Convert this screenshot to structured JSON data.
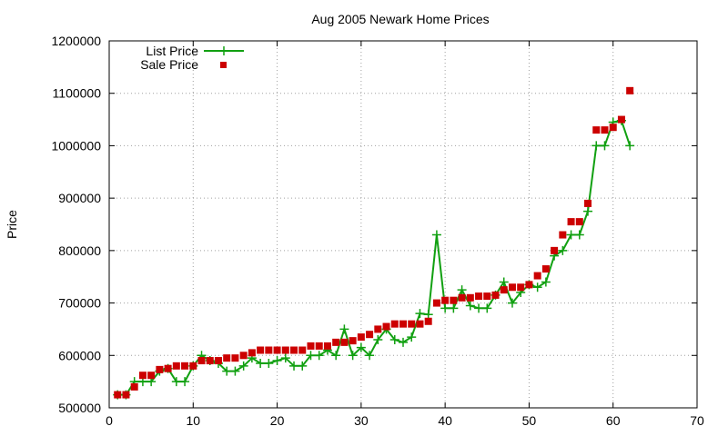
{
  "chart_data": {
    "type": "line",
    "title": "Aug 2005 Newark Home Prices",
    "xlabel": "",
    "ylabel": "Price",
    "xlim": [
      0,
      70
    ],
    "ylim": [
      500000,
      1200000
    ],
    "x_ticks": [
      0,
      10,
      20,
      30,
      40,
      50,
      60,
      70
    ],
    "y_ticks": [
      500000,
      600000,
      700000,
      800000,
      900000,
      1000000,
      1100000,
      1200000
    ],
    "grid": true,
    "legend_position": "top-left",
    "series": [
      {
        "name": "List Price",
        "style": "line+cross",
        "color": "#11a011",
        "points": [
          [
            1,
            525000
          ],
          [
            2,
            525000
          ],
          [
            3,
            550000
          ],
          [
            4,
            550000
          ],
          [
            5,
            550000
          ],
          [
            6,
            570000
          ],
          [
            7,
            575000
          ],
          [
            8,
            550000
          ],
          [
            9,
            550000
          ],
          [
            10,
            580000
          ],
          [
            11,
            600000
          ],
          [
            12,
            590000
          ],
          [
            13,
            585000
          ],
          [
            14,
            570000
          ],
          [
            15,
            570000
          ],
          [
            16,
            580000
          ],
          [
            17,
            595000
          ],
          [
            18,
            585000
          ],
          [
            19,
            585000
          ],
          [
            20,
            590000
          ],
          [
            21,
            595000
          ],
          [
            22,
            580000
          ],
          [
            23,
            580000
          ],
          [
            24,
            600000
          ],
          [
            25,
            600000
          ],
          [
            26,
            610000
          ],
          [
            27,
            600000
          ],
          [
            28,
            650000
          ],
          [
            29,
            600000
          ],
          [
            30,
            615000
          ],
          [
            31,
            600000
          ],
          [
            32,
            630000
          ],
          [
            33,
            650000
          ],
          [
            34,
            630000
          ],
          [
            35,
            625000
          ],
          [
            36,
            635000
          ],
          [
            37,
            680000
          ],
          [
            38,
            678000
          ],
          [
            39,
            830000
          ],
          [
            40,
            690000
          ],
          [
            41,
            690000
          ],
          [
            42,
            725000
          ],
          [
            43,
            695000
          ],
          [
            44,
            690000
          ],
          [
            45,
            690000
          ],
          [
            46,
            715000
          ],
          [
            47,
            740000
          ],
          [
            48,
            700000
          ],
          [
            49,
            720000
          ],
          [
            50,
            735000
          ],
          [
            51,
            730000
          ],
          [
            52,
            740000
          ],
          [
            53,
            790000
          ],
          [
            54,
            800000
          ],
          [
            55,
            830000
          ],
          [
            56,
            830000
          ],
          [
            57,
            875000
          ],
          [
            58,
            1000000
          ],
          [
            59,
            1000000
          ],
          [
            60,
            1045000
          ],
          [
            61,
            1048000
          ],
          [
            62,
            1000000
          ]
        ]
      },
      {
        "name": "Sale Price",
        "style": "square-marker",
        "color": "#cc0000",
        "points": [
          [
            1,
            525000
          ],
          [
            2,
            525000
          ],
          [
            3,
            540000
          ],
          [
            4,
            562000
          ],
          [
            5,
            562000
          ],
          [
            6,
            573000
          ],
          [
            7,
            575000
          ],
          [
            8,
            580000
          ],
          [
            9,
            580000
          ],
          [
            10,
            580000
          ],
          [
            11,
            590000
          ],
          [
            12,
            590000
          ],
          [
            13,
            590000
          ],
          [
            14,
            595000
          ],
          [
            15,
            595000
          ],
          [
            16,
            600000
          ],
          [
            17,
            605000
          ],
          [
            18,
            610000
          ],
          [
            19,
            610000
          ],
          [
            20,
            610000
          ],
          [
            21,
            610000
          ],
          [
            22,
            610000
          ],
          [
            23,
            610000
          ],
          [
            24,
            618000
          ],
          [
            25,
            618000
          ],
          [
            26,
            618000
          ],
          [
            27,
            625000
          ],
          [
            28,
            625000
          ],
          [
            29,
            628000
          ],
          [
            30,
            635000
          ],
          [
            31,
            640000
          ],
          [
            32,
            650000
          ],
          [
            33,
            655000
          ],
          [
            34,
            660000
          ],
          [
            35,
            660000
          ],
          [
            36,
            660000
          ],
          [
            37,
            660000
          ],
          [
            38,
            665000
          ],
          [
            39,
            700000
          ],
          [
            40,
            705000
          ],
          [
            41,
            705000
          ],
          [
            42,
            710000
          ],
          [
            43,
            710000
          ],
          [
            44,
            713000
          ],
          [
            45,
            713000
          ],
          [
            46,
            715000
          ],
          [
            47,
            725000
          ],
          [
            48,
            730000
          ],
          [
            49,
            730000
          ],
          [
            50,
            735000
          ],
          [
            51,
            752000
          ],
          [
            52,
            765000
          ],
          [
            53,
            800000
          ],
          [
            54,
            830000
          ],
          [
            55,
            855000
          ],
          [
            56,
            855000
          ],
          [
            57,
            890000
          ],
          [
            58,
            1030000
          ],
          [
            59,
            1030000
          ],
          [
            60,
            1035000
          ],
          [
            61,
            1050000
          ],
          [
            62,
            1105000
          ]
        ]
      }
    ]
  },
  "colors": {
    "list_series": "#11a011",
    "sale_series": "#cc0000",
    "grid": "#a0a0a0",
    "axis": "#000000"
  }
}
